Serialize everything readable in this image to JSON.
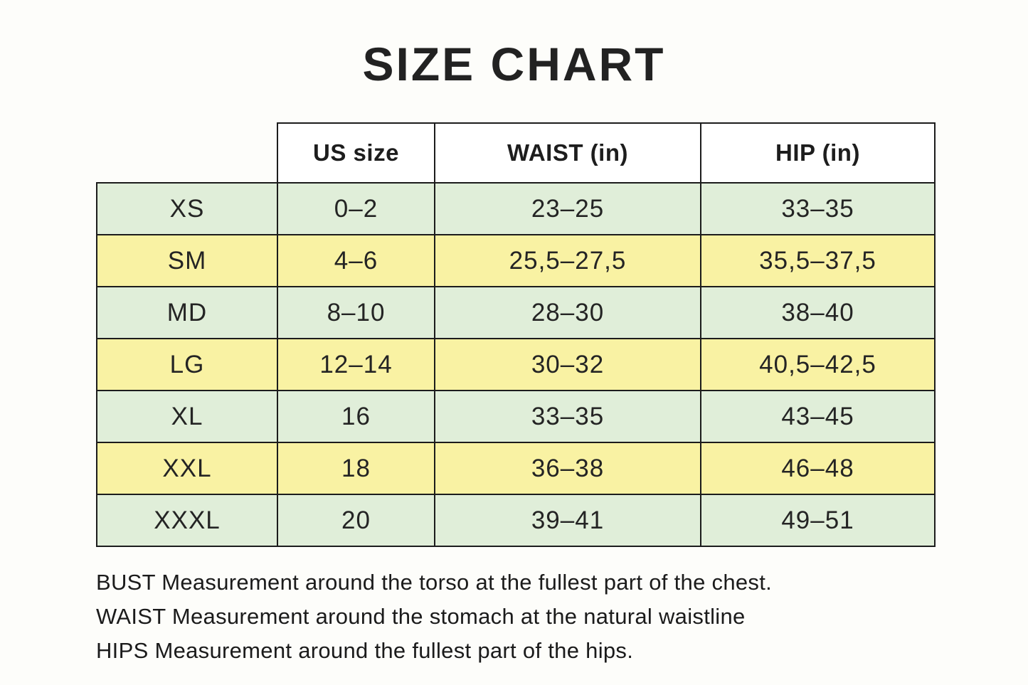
{
  "title": "SIZE CHART",
  "chart_data": {
    "type": "table",
    "title": "SIZE CHART",
    "columns": [
      "",
      "US size",
      "WAIST (in)",
      "HIP (in)"
    ],
    "rows": [
      [
        "XS",
        "0–2",
        "23–25",
        "33–35"
      ],
      [
        "SM",
        "4–6",
        "25,5–27,5",
        "35,5–37,5"
      ],
      [
        "MD",
        "8–10",
        "28–30",
        "38–40"
      ],
      [
        "LG",
        "12–14",
        "30–32",
        "40,5–42,5"
      ],
      [
        "XL",
        "16",
        "33–35",
        "43–45"
      ],
      [
        "XXL",
        "18",
        "36–38",
        "46–48"
      ],
      [
        "XXXL",
        "20",
        "39–41",
        "49–51"
      ]
    ],
    "row_stripe_pattern": [
      "green",
      "yellow",
      "green",
      "yellow",
      "green",
      "yellow",
      "green"
    ],
    "notes": [
      "BUST Measurement around the torso at the fullest part of the chest.",
      "WAIST Measurement around the stomach at the natural waistline",
      "HIPS Measurement around the fullest part of the hips."
    ]
  },
  "colors": {
    "row_green": "#e0eed9",
    "row_yellow": "#f9f2a3",
    "border": "#1c1c1c",
    "page_background": "#fdfdfa"
  }
}
